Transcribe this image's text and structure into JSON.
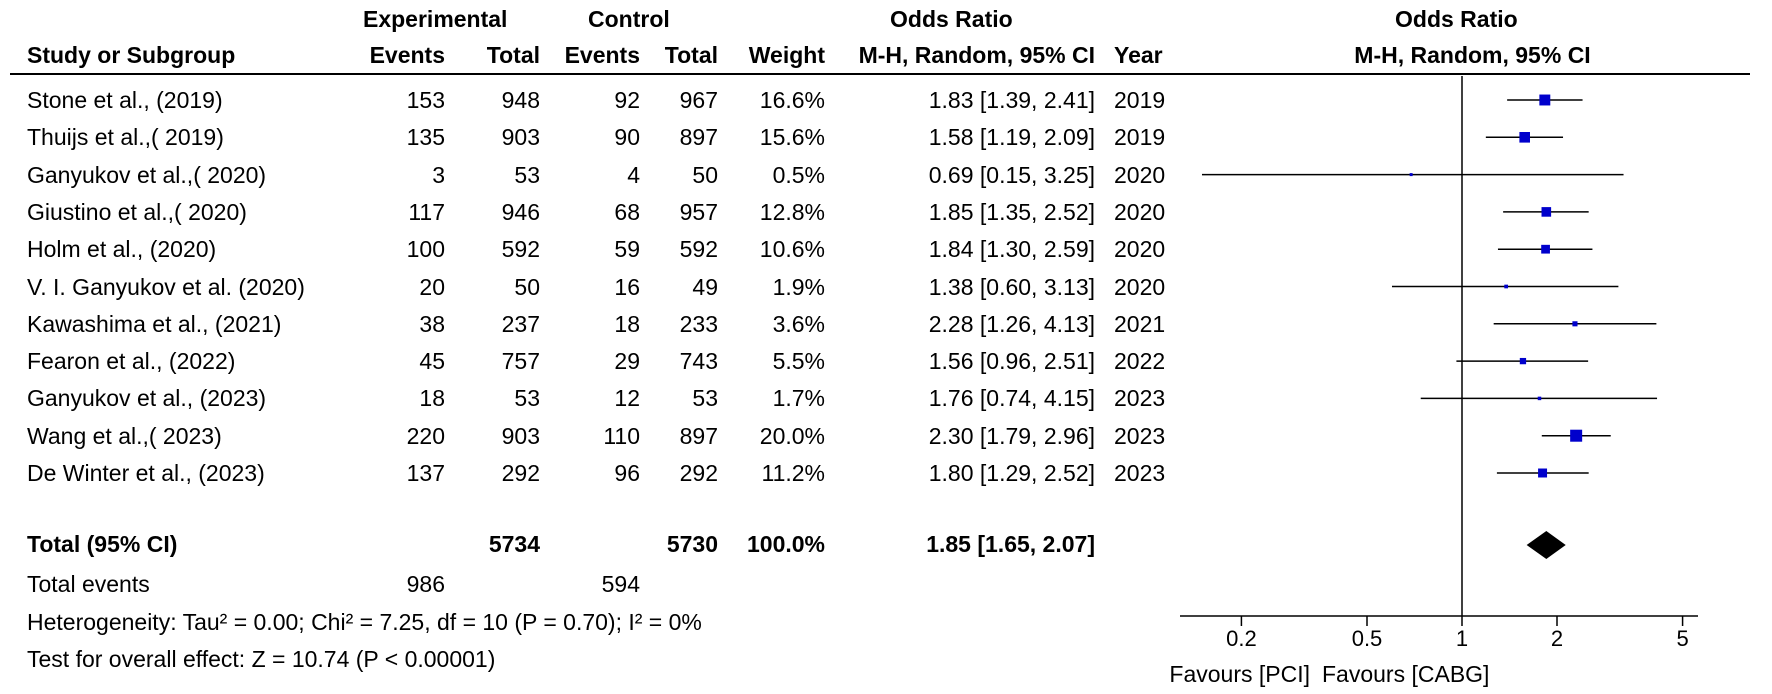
{
  "headers": {
    "experimental": "Experimental",
    "control": "Control",
    "odds_ratio_table": "Odds Ratio",
    "odds_ratio_plot": "Odds Ratio",
    "study": "Study or Subgroup",
    "exp_events": "Events",
    "exp_total": "Total",
    "ctl_events": "Events",
    "ctl_total": "Total",
    "weight": "Weight",
    "or_method": "M-H, Random, 95% CI",
    "year": "Year",
    "plot_method": "M-H, Random, 95% CI"
  },
  "studies": [
    {
      "name": "Stone et al., (2019)",
      "exp_events": "153",
      "exp_total": "948",
      "ctl_events": "92",
      "ctl_total": "967",
      "weight": "16.6%",
      "or_text": "1.83 [1.39, 2.41]",
      "year": "2019"
    },
    {
      "name": "Thuijs et al.,( 2019)",
      "exp_events": "135",
      "exp_total": "903",
      "ctl_events": "90",
      "ctl_total": "897",
      "weight": "15.6%",
      "or_text": "1.58 [1.19, 2.09]",
      "year": "2019"
    },
    {
      "name": "Ganyukov et al.,( 2020)",
      "exp_events": "3",
      "exp_total": "53",
      "ctl_events": "4",
      "ctl_total": "50",
      "weight": "0.5%",
      "or_text": "0.69 [0.15, 3.25]",
      "year": "2020"
    },
    {
      "name": "Giustino et al.,( 2020)",
      "exp_events": "117",
      "exp_total": "946",
      "ctl_events": "68",
      "ctl_total": "957",
      "weight": "12.8%",
      "or_text": "1.85 [1.35, 2.52]",
      "year": "2020"
    },
    {
      "name": "Holm et al., (2020)",
      "exp_events": "100",
      "exp_total": "592",
      "ctl_events": "59",
      "ctl_total": "592",
      "weight": "10.6%",
      "or_text": "1.84 [1.30, 2.59]",
      "year": "2020"
    },
    {
      "name": "V. I. Ganyukov et al. (2020)",
      "exp_events": "20",
      "exp_total": "50",
      "ctl_events": "16",
      "ctl_total": "49",
      "weight": "1.9%",
      "or_text": "1.38 [0.60, 3.13]",
      "year": "2020"
    },
    {
      "name": "Kawashima et al., (2021)",
      "exp_events": "38",
      "exp_total": "237",
      "ctl_events": "18",
      "ctl_total": "233",
      "weight": "3.6%",
      "or_text": "2.28 [1.26, 4.13]",
      "year": "2021"
    },
    {
      "name": "Fearon et al., (2022)",
      "exp_events": "45",
      "exp_total": "757",
      "ctl_events": "29",
      "ctl_total": "743",
      "weight": "5.5%",
      "or_text": "1.56 [0.96, 2.51]",
      "year": "2022"
    },
    {
      "name": "Ganyukov et al., (2023)",
      "exp_events": "18",
      "exp_total": "53",
      "ctl_events": "12",
      "ctl_total": "53",
      "weight": "1.7%",
      "or_text": "1.76 [0.74, 4.15]",
      "year": "2023"
    },
    {
      "name": "Wang et al.,( 2023)",
      "exp_events": "220",
      "exp_total": "903",
      "ctl_events": "110",
      "ctl_total": "897",
      "weight": "20.0%",
      "or_text": "2.30 [1.79, 2.96]",
      "year": "2023"
    },
    {
      "name": "De Winter et al., (2023)",
      "exp_events": "137",
      "exp_total": "292",
      "ctl_events": "96",
      "ctl_total": "292",
      "weight": "11.2%",
      "or_text": "1.80 [1.29, 2.52]",
      "year": "2023"
    }
  ],
  "total": {
    "label": "Total (95% CI)",
    "exp_total": "5734",
    "ctl_total": "5730",
    "weight": "100.0%",
    "or_text": "1.85 [1.65, 2.07]"
  },
  "total_events": {
    "label": "Total events",
    "exp": "986",
    "ctl": "594"
  },
  "heterogeneity": "Heterogeneity: Tau² = 0.00; Chi² = 7.25, df = 10 (P = 0.70); I² = 0%",
  "overall_effect": "Test for overall effect: Z = 10.74 (P < 0.00001)",
  "favours_left": "Favours [PCI]",
  "favours_right": "Favours [CABG]",
  "colors": {
    "marker": "#0000cc",
    "text": "#000000",
    "line": "#000000"
  },
  "chart_data": {
    "type": "forest",
    "scale": "log",
    "xlim": [
      0.15,
      6.5
    ],
    "ticks": [
      0.2,
      0.5,
      1,
      2,
      5
    ],
    "tick_labels": [
      "0.2",
      "0.5",
      "1",
      "2",
      "5"
    ],
    "null_value": 1,
    "points": [
      {
        "or": 1.83,
        "lo": 1.39,
        "hi": 2.41,
        "weight": 16.6
      },
      {
        "or": 1.58,
        "lo": 1.19,
        "hi": 2.09,
        "weight": 15.6
      },
      {
        "or": 0.69,
        "lo": 0.15,
        "hi": 3.25,
        "weight": 0.5
      },
      {
        "or": 1.85,
        "lo": 1.35,
        "hi": 2.52,
        "weight": 12.8
      },
      {
        "or": 1.84,
        "lo": 1.3,
        "hi": 2.59,
        "weight": 10.6
      },
      {
        "or": 1.38,
        "lo": 0.6,
        "hi": 3.13,
        "weight": 1.9
      },
      {
        "or": 2.28,
        "lo": 1.26,
        "hi": 4.13,
        "weight": 3.6
      },
      {
        "or": 1.56,
        "lo": 0.96,
        "hi": 2.51,
        "weight": 5.5
      },
      {
        "or": 1.76,
        "lo": 0.74,
        "hi": 4.15,
        "weight": 1.7
      },
      {
        "or": 2.3,
        "lo": 1.79,
        "hi": 2.96,
        "weight": 20.0
      },
      {
        "or": 1.8,
        "lo": 1.29,
        "hi": 2.52,
        "weight": 11.2
      }
    ],
    "pooled": {
      "or": 1.85,
      "lo": 1.65,
      "hi": 2.07
    }
  }
}
